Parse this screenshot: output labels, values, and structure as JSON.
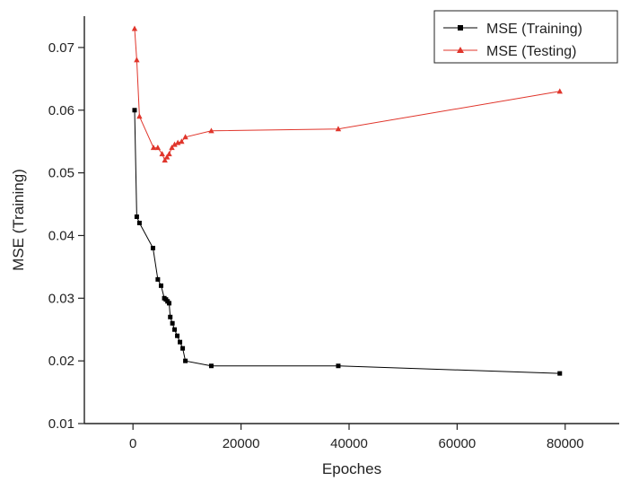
{
  "chart_data": {
    "type": "line",
    "title": "",
    "xlabel": "Epoches",
    "ylabel": "MSE (Training)",
    "xlim": [
      -9000,
      90000
    ],
    "ylim": [
      0.01,
      0.075
    ],
    "xticks": [
      "0",
      "20000",
      "40000",
      "60000",
      "80000"
    ],
    "xtick_values": [
      0,
      20000,
      40000,
      60000,
      80000
    ],
    "yticks": [
      "0.01",
      "0.02",
      "0.03",
      "0.04",
      "0.05",
      "0.06",
      "0.07"
    ],
    "ytick_values": [
      0.01,
      0.02,
      0.03,
      0.04,
      0.05,
      0.06,
      0.07
    ],
    "grid": false,
    "legend_position": "top-right",
    "series": [
      {
        "name": "MSE (Training)",
        "color": "#000000",
        "marker": "square",
        "x": [
          300,
          700,
          1200,
          3700,
          4600,
          5200,
          5800,
          6100,
          6400,
          6700,
          6900,
          7300,
          7700,
          8200,
          8700,
          9200,
          9700,
          14500,
          38000,
          79000
        ],
        "y": [
          0.06,
          0.043,
          0.042,
          0.038,
          0.033,
          0.032,
          0.03,
          0.0298,
          0.0295,
          0.0292,
          0.027,
          0.026,
          0.025,
          0.024,
          0.023,
          0.022,
          0.02,
          0.0192,
          0.0192,
          0.018
        ]
      },
      {
        "name": "MSE (Testing)",
        "color": "#e0352b",
        "marker": "triangle",
        "x": [
          300,
          700,
          1200,
          3800,
          4600,
          5400,
          5900,
          6300,
          6700,
          7200,
          7700,
          8300,
          9000,
          9700,
          14500,
          38000,
          79000
        ],
        "y": [
          0.073,
          0.068,
          0.059,
          0.054,
          0.054,
          0.053,
          0.052,
          0.0525,
          0.053,
          0.054,
          0.0545,
          0.0548,
          0.055,
          0.0557,
          0.0567,
          0.057,
          0.063
        ]
      }
    ]
  }
}
